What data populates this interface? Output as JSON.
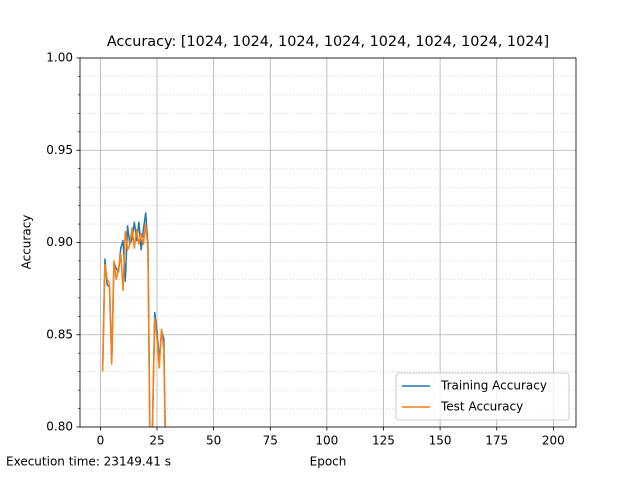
{
  "chart_data": {
    "type": "line",
    "title": "Accuracy: [1024, 1024, 1024, 1024, 1024, 1024, 1024, 1024]",
    "x_label": "Epoch",
    "y_label": "Accuracy",
    "annotation": "Execution time: 23149.41 s",
    "x": [
      1,
      2,
      3,
      4,
      5,
      6,
      7,
      8,
      9,
      10,
      11,
      12,
      13,
      14,
      15,
      16,
      17,
      18,
      19,
      20,
      21,
      22,
      23,
      24,
      25,
      26,
      27,
      28,
      29
    ],
    "series": [
      {
        "name": "Training Accuracy",
        "color": "#1f77b4",
        "values": [
          0.831,
          0.891,
          0.877,
          0.876,
          0.835,
          0.889,
          0.886,
          0.884,
          0.897,
          0.901,
          0.879,
          0.909,
          0.899,
          0.902,
          0.911,
          0.901,
          0.911,
          0.896,
          0.907,
          0.916,
          0.899,
          0.78,
          0.8,
          0.862,
          0.852,
          0.836,
          0.852,
          0.848,
          0.77
        ]
      },
      {
        "name": "Test Accuracy",
        "color": "#ff7f0e",
        "values": [
          0.83,
          0.888,
          0.88,
          0.878,
          0.834,
          0.89,
          0.88,
          0.886,
          0.894,
          0.874,
          0.906,
          0.896,
          0.899,
          0.908,
          0.897,
          0.907,
          0.899,
          0.905,
          0.899,
          0.91,
          0.897,
          0.77,
          0.8,
          0.859,
          0.848,
          0.832,
          0.853,
          0.842,
          0.77
        ]
      }
    ],
    "xlim": [
      -9,
      210
    ],
    "xticks": [
      0,
      25,
      50,
      75,
      100,
      125,
      150,
      175,
      200
    ],
    "ylim": [
      0.8,
      1.0
    ],
    "yticks": [
      {
        "value": 0.8,
        "label": "0.80"
      },
      0.85,
      {
        "value": 0.9,
        "label": "0.90"
      },
      0.95,
      {
        "value": 1.0,
        "label": "1.00"
      }
    ],
    "minor_yticks": [
      0.81,
      0.82,
      0.83,
      0.84,
      0.86,
      0.87,
      0.88,
      0.89,
      0.91,
      0.92,
      0.93,
      0.94,
      0.96,
      0.97,
      0.98,
      0.99
    ],
    "grid": true,
    "legend": "lower right"
  }
}
